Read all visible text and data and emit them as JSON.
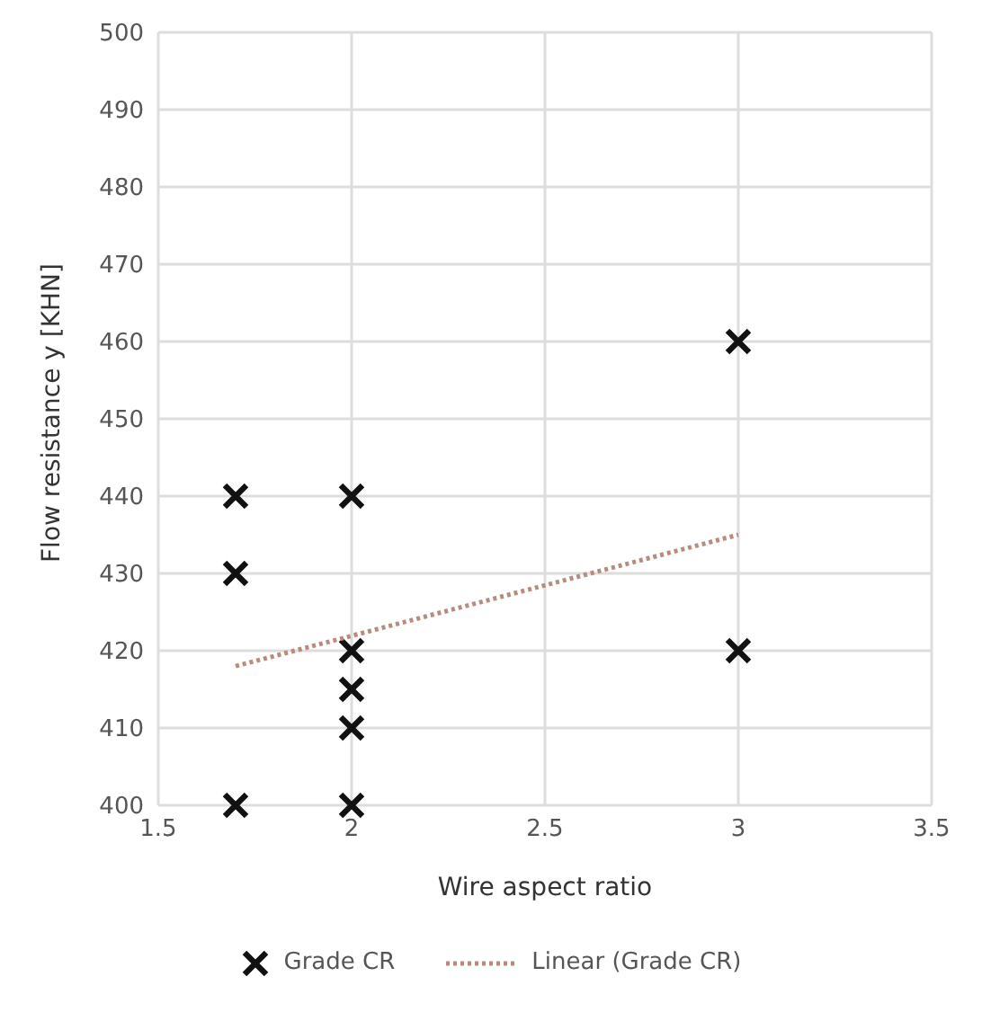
{
  "chart_data": {
    "type": "scatter",
    "xlabel": "Wire aspect ratio",
    "ylabel": "Flow resistance y [KHN]",
    "xlim": [
      1.5,
      3.5
    ],
    "xticks": [
      1.5,
      2,
      2.5,
      3,
      3.5
    ],
    "ylim": [
      400,
      500
    ],
    "yticks": [
      400,
      410,
      420,
      430,
      440,
      450,
      460,
      470,
      480,
      490,
      500
    ],
    "grid": true,
    "legend": "bottom",
    "series": [
      {
        "name": "Grade CR",
        "color": "#111111",
        "marker": "cross",
        "x": [
          1.7,
          1.7,
          1.7,
          2,
          2,
          2,
          2,
          2,
          3,
          3
        ],
        "values": [
          440,
          430,
          400,
          440,
          420,
          415,
          410,
          400,
          460,
          420
        ]
      },
      {
        "name": "Linear (Grade CR)",
        "type": "line",
        "color": "#b98a7e",
        "line_style": "dotted",
        "x": [
          1.7,
          3
        ],
        "values": [
          418,
          435
        ]
      }
    ]
  }
}
